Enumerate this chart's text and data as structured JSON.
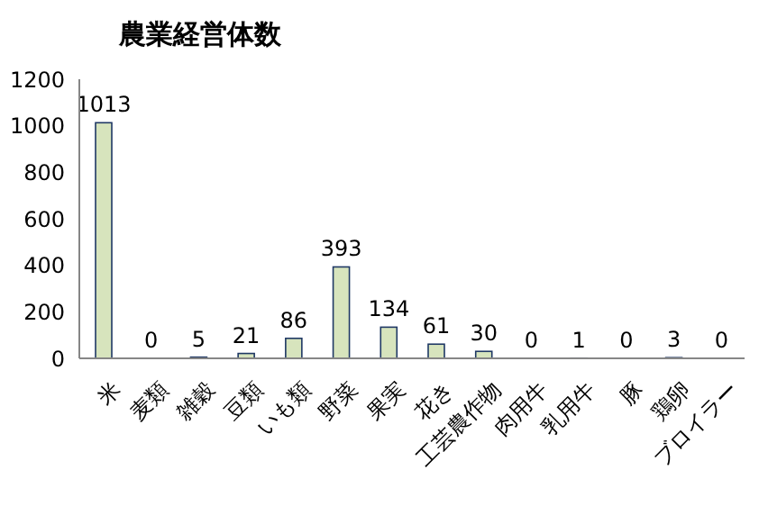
{
  "chart_data": {
    "type": "bar",
    "title": "農業経営体数",
    "categories": [
      "米",
      "麦類",
      "雑穀",
      "豆類",
      "いも類",
      "野菜",
      "果実",
      "花き",
      "工芸農作物",
      "肉用牛",
      "乳用牛",
      "豚",
      "鶏卵",
      "ブロイラー"
    ],
    "values": [
      1013,
      0,
      5,
      21,
      86,
      393,
      134,
      61,
      30,
      0,
      1,
      0,
      3,
      0
    ],
    "color": "#d7e4bd",
    "ylim": [
      0,
      1200
    ],
    "yticks": [
      0,
      200,
      400,
      600,
      800,
      1000,
      1200
    ],
    "grid": false,
    "data_labels": true
  }
}
